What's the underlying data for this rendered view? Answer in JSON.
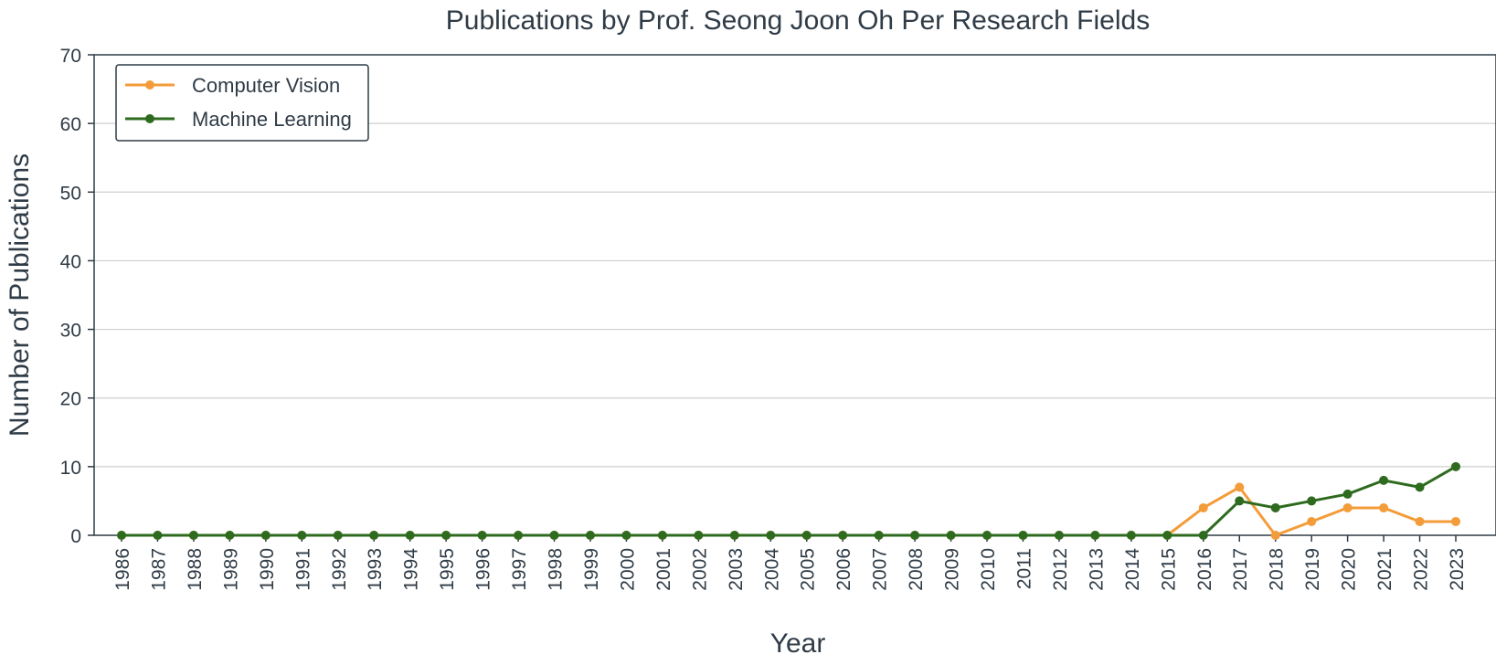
{
  "chart_data": {
    "type": "line",
    "title": "Publications by Prof. Seong Joon Oh Per Research Fields",
    "xlabel": "Year",
    "ylabel": "Number of Publications",
    "x": [
      "1986",
      "1987",
      "1988",
      "1989",
      "1990",
      "1991",
      "1992",
      "1993",
      "1994",
      "1995",
      "1996",
      "1997",
      "1998",
      "1999",
      "2000",
      "2001",
      "2002",
      "2003",
      "2004",
      "2005",
      "2006",
      "2007",
      "2008",
      "2009",
      "2010",
      "2011",
      "2012",
      "2013",
      "2014",
      "2015",
      "2016",
      "2017",
      "2018",
      "2019",
      "2020",
      "2021",
      "2022",
      "2023"
    ],
    "ylim": [
      0,
      70
    ],
    "yticks": [
      0,
      10,
      20,
      30,
      40,
      50,
      60,
      70
    ],
    "grid": "horizontal",
    "legend_position": "top-left",
    "series": [
      {
        "name": "Computer Vision",
        "color": "#f39c3a",
        "values": [
          0,
          0,
          0,
          0,
          0,
          0,
          0,
          0,
          0,
          0,
          0,
          0,
          0,
          0,
          0,
          0,
          0,
          0,
          0,
          0,
          0,
          0,
          0,
          0,
          0,
          0,
          0,
          0,
          0,
          0,
          4,
          7,
          0,
          2,
          4,
          4,
          2,
          2
        ]
      },
      {
        "name": "Machine Learning",
        "color": "#2e6b1f",
        "values": [
          0,
          0,
          0,
          0,
          0,
          0,
          0,
          0,
          0,
          0,
          0,
          0,
          0,
          0,
          0,
          0,
          0,
          0,
          0,
          0,
          0,
          0,
          0,
          0,
          0,
          0,
          0,
          0,
          0,
          0,
          0,
          5,
          4,
          5,
          6,
          8,
          7,
          10
        ]
      }
    ]
  }
}
